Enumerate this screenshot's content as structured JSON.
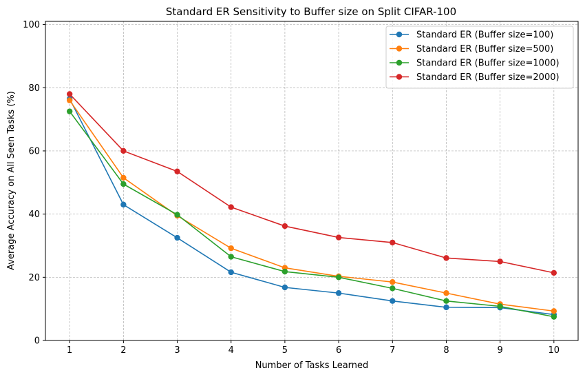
{
  "chart_data": {
    "type": "line",
    "title": "Standard ER Sensitivity to Buffer size on Split CIFAR-100",
    "xlabel": "Number of Tasks Learned",
    "ylabel": "Average Accuracy on All Seen Tasks (%)",
    "x": [
      1,
      2,
      3,
      4,
      5,
      6,
      7,
      8,
      9,
      10
    ],
    "xlim": [
      0.55,
      10.45
    ],
    "ylim": [
      0,
      101
    ],
    "xticks": [
      "1",
      "2",
      "3",
      "4",
      "5",
      "6",
      "7",
      "8",
      "9",
      "10"
    ],
    "yticks": [
      "0",
      "20",
      "40",
      "60",
      "80",
      "100"
    ],
    "grid": true,
    "legend_position": "top-right",
    "series": [
      {
        "name": "Standard ER (Buffer size=100)",
        "color": "#1f77b4",
        "values": [
          76.5,
          43.0,
          32.5,
          21.6,
          16.8,
          15.0,
          12.5,
          10.5,
          10.4,
          8.2
        ]
      },
      {
        "name": "Standard ER (Buffer size=500)",
        "color": "#ff7f0e",
        "values": [
          76.0,
          51.5,
          39.5,
          29.2,
          23.0,
          20.3,
          18.5,
          15.0,
          11.5,
          9.3
        ]
      },
      {
        "name": "Standard ER (Buffer size=1000)",
        "color": "#2ca02c",
        "values": [
          72.5,
          49.5,
          39.8,
          26.5,
          21.8,
          20.0,
          16.5,
          12.5,
          10.8,
          7.5
        ]
      },
      {
        "name": "Standard ER (Buffer size=2000)",
        "color": "#d62728",
        "values": [
          78.0,
          60.0,
          53.5,
          42.2,
          36.2,
          32.6,
          31.0,
          26.1,
          25.0,
          21.4
        ]
      }
    ]
  }
}
